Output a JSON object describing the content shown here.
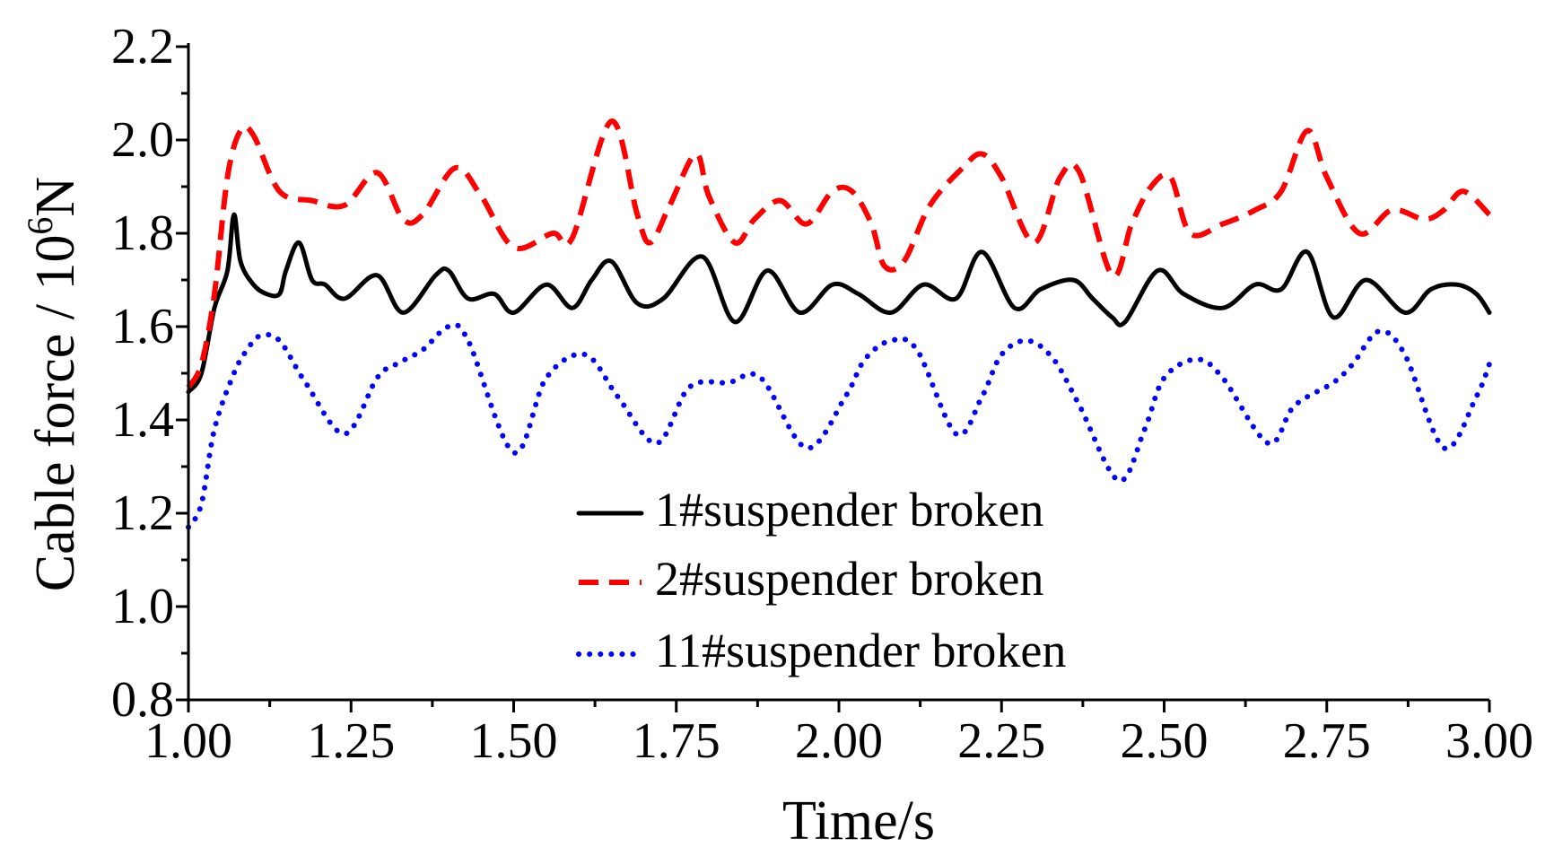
{
  "chart_data": {
    "type": "line",
    "title": "",
    "xlabel": "Time/s",
    "ylabel_main": "Cable force / 10",
    "ylabel_sup": "6",
    "ylabel_unit": "N",
    "xlim": [
      1.0,
      3.0
    ],
    "ylim": [
      0.8,
      2.2
    ],
    "xticks": [
      1.0,
      1.25,
      1.5,
      1.75,
      2.0,
      2.25,
      2.5,
      2.75,
      3.0
    ],
    "xtick_labels": [
      "1.00",
      "1.25",
      "1.50",
      "1.75",
      "2.00",
      "2.25",
      "2.50",
      "2.75",
      "3.00"
    ],
    "yticks": [
      0.8,
      1.0,
      1.2,
      1.4,
      1.6,
      1.8,
      2.0,
      2.2
    ],
    "ytick_labels": [
      "0.8",
      "1.0",
      "1.2",
      "1.4",
      "1.6",
      "1.8",
      "2.0",
      "2.2"
    ],
    "legend_position": "bottom-center",
    "series": [
      {
        "name": "1#suspender broken",
        "color": "#000000",
        "style": "solid",
        "x": [
          1.0,
          1.02,
          1.04,
          1.06,
          1.07,
          1.08,
          1.1,
          1.12,
          1.14,
          1.15,
          1.17,
          1.19,
          1.21,
          1.24,
          1.29,
          1.33,
          1.38,
          1.4,
          1.43,
          1.47,
          1.5,
          1.55,
          1.59,
          1.62,
          1.65,
          1.69,
          1.73,
          1.79,
          1.84,
          1.89,
          1.94,
          1.99,
          2.03,
          2.08,
          2.13,
          2.18,
          2.22,
          2.27,
          2.31,
          2.36,
          2.39,
          2.42,
          2.44,
          2.49,
          2.53,
          2.59,
          2.64,
          2.68,
          2.72,
          2.76,
          2.81,
          2.87,
          2.91,
          2.95,
          2.98,
          3.0
        ],
        "y": [
          1.46,
          1.5,
          1.64,
          1.72,
          1.84,
          1.74,
          1.69,
          1.67,
          1.67,
          1.72,
          1.78,
          1.7,
          1.69,
          1.66,
          1.71,
          1.63,
          1.71,
          1.72,
          1.66,
          1.67,
          1.63,
          1.69,
          1.64,
          1.7,
          1.74,
          1.65,
          1.66,
          1.75,
          1.61,
          1.72,
          1.63,
          1.69,
          1.67,
          1.63,
          1.69,
          1.66,
          1.76,
          1.64,
          1.68,
          1.7,
          1.66,
          1.62,
          1.61,
          1.72,
          1.67,
          1.64,
          1.69,
          1.68,
          1.76,
          1.62,
          1.7,
          1.63,
          1.68,
          1.69,
          1.67,
          1.63
        ]
      },
      {
        "name": "2#suspender broken",
        "color": "#ff0000",
        "style": "dashed",
        "x": [
          1.0,
          1.02,
          1.04,
          1.06,
          1.08,
          1.1,
          1.14,
          1.19,
          1.24,
          1.29,
          1.33,
          1.36,
          1.41,
          1.45,
          1.5,
          1.56,
          1.59,
          1.65,
          1.69,
          1.71,
          1.74,
          1.78,
          1.8,
          1.84,
          1.87,
          1.91,
          1.95,
          1.99,
          2.02,
          2.05,
          2.07,
          2.1,
          2.14,
          2.19,
          2.22,
          2.25,
          2.3,
          2.34,
          2.37,
          2.42,
          2.45,
          2.48,
          2.51,
          2.54,
          2.59,
          2.64,
          2.68,
          2.72,
          2.75,
          2.8,
          2.85,
          2.9,
          2.93,
          2.96,
          3.0
        ],
        "y": [
          1.47,
          1.52,
          1.67,
          1.92,
          2.02,
          2.01,
          1.89,
          1.87,
          1.86,
          1.93,
          1.83,
          1.84,
          1.94,
          1.88,
          1.77,
          1.8,
          1.79,
          2.04,
          1.84,
          1.78,
          1.86,
          1.97,
          1.88,
          1.78,
          1.83,
          1.87,
          1.82,
          1.89,
          1.89,
          1.82,
          1.73,
          1.74,
          1.86,
          1.94,
          1.97,
          1.92,
          1.78,
          1.92,
          1.93,
          1.71,
          1.82,
          1.9,
          1.92,
          1.8,
          1.82,
          1.85,
          1.89,
          2.02,
          1.92,
          1.8,
          1.85,
          1.83,
          1.85,
          1.89,
          1.84
        ]
      },
      {
        "name": "11#suspender broken",
        "color": "#0000ff",
        "style": "dotted",
        "x": [
          1.0,
          1.02,
          1.04,
          1.07,
          1.09,
          1.11,
          1.14,
          1.18,
          1.24,
          1.29,
          1.32,
          1.36,
          1.4,
          1.43,
          1.5,
          1.55,
          1.61,
          1.66,
          1.72,
          1.77,
          1.83,
          1.88,
          1.95,
          2.01,
          2.04,
          2.08,
          2.12,
          2.18,
          2.22,
          2.25,
          2.29,
          2.33,
          2.37,
          2.43,
          2.47,
          2.5,
          2.55,
          2.59,
          2.66,
          2.7,
          2.76,
          2.79,
          2.83,
          2.87,
          2.93,
          2.98,
          3.0
        ],
        "y": [
          1.17,
          1.22,
          1.38,
          1.5,
          1.55,
          1.58,
          1.57,
          1.48,
          1.37,
          1.49,
          1.52,
          1.55,
          1.6,
          1.57,
          1.33,
          1.49,
          1.54,
          1.45,
          1.35,
          1.47,
          1.48,
          1.49,
          1.34,
          1.45,
          1.53,
          1.57,
          1.55,
          1.37,
          1.45,
          1.54,
          1.57,
          1.53,
          1.43,
          1.27,
          1.38,
          1.49,
          1.53,
          1.49,
          1.35,
          1.43,
          1.48,
          1.52,
          1.59,
          1.54,
          1.34,
          1.45,
          1.52
        ]
      }
    ]
  }
}
